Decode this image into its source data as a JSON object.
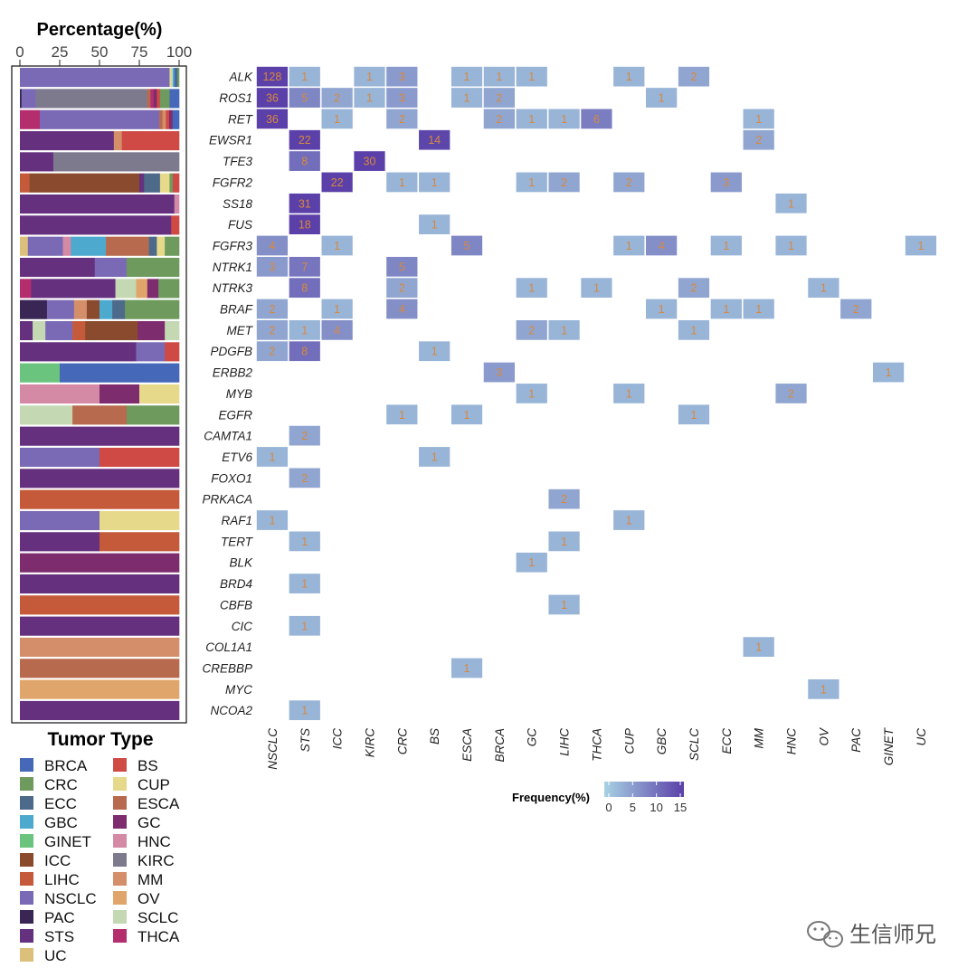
{
  "chart_data": [
    {
      "type": "stacked-bar",
      "orientation": "horizontal",
      "title": "Percentage(%)",
      "xlim": [
        0,
        100
      ],
      "xticks": [
        "0",
        "25",
        "50",
        "75",
        "100"
      ],
      "rows": [
        [
          [
            "NSCLC",
            94
          ],
          [
            "CUP",
            1
          ],
          [
            "SCLC",
            1
          ],
          [
            "GBC",
            1
          ],
          [
            "BRCA",
            1
          ],
          [
            "ECC",
            1
          ],
          [
            "CRC",
            1
          ]
        ],
        [
          [
            "PAC",
            1
          ],
          [
            "NSCLC",
            9
          ],
          [
            "KIRC",
            70
          ],
          [
            "ESCA",
            2
          ],
          [
            "THCA",
            2
          ],
          [
            "GC",
            2
          ],
          [
            "BS",
            2
          ],
          [
            "CRC",
            6
          ],
          [
            "BRCA",
            6
          ]
        ],
        [
          [
            "THCA",
            12
          ],
          [
            "NSCLC",
            72
          ],
          [
            "ESCA",
            2
          ],
          [
            "MM",
            2
          ],
          [
            "BS",
            2
          ],
          [
            "GC",
            2
          ],
          [
            "BRCA",
            4
          ]
        ],
        [
          [
            "STS",
            59
          ],
          [
            "MM",
            5
          ],
          [
            "BS",
            36
          ]
        ],
        [
          [
            "STS",
            21
          ],
          [
            "KIRC",
            79
          ]
        ],
        [
          [
            "LIHC",
            6
          ],
          [
            "ICC",
            69
          ],
          [
            "STS",
            3
          ],
          [
            "ECC",
            10
          ],
          [
            "CUP",
            6
          ],
          [
            "CRC",
            2
          ],
          [
            "BS",
            4
          ]
        ],
        [
          [
            "STS",
            97
          ],
          [
            "HNC",
            3
          ]
        ],
        [
          [
            "STS",
            95
          ],
          [
            "BS",
            5
          ]
        ],
        [
          [
            "UC",
            5
          ],
          [
            "NSCLC",
            22
          ],
          [
            "HNC",
            5
          ],
          [
            "GBC",
            22
          ],
          [
            "ESCA",
            27
          ],
          [
            "ECC",
            5
          ],
          [
            "CUP",
            5
          ],
          [
            "CRC",
            9
          ]
        ],
        [
          [
            "STS",
            47
          ],
          [
            "NSCLC",
            20
          ],
          [
            "CRC",
            33
          ]
        ],
        [
          [
            "THCA",
            7
          ],
          [
            "STS",
            53
          ],
          [
            "SCLC",
            13
          ],
          [
            "OV",
            7
          ],
          [
            "GC",
            7
          ],
          [
            "CRC",
            13
          ]
        ],
        [
          [
            "PAC",
            17
          ],
          [
            "NSCLC",
            17
          ],
          [
            "MM",
            8
          ],
          [
            "ICC",
            8
          ],
          [
            "GBC",
            8
          ],
          [
            "ECC",
            8
          ],
          [
            "CRC",
            34
          ]
        ],
        [
          [
            "STS",
            8
          ],
          [
            "SCLC",
            8
          ],
          [
            "NSCLC",
            17
          ],
          [
            "LIHC",
            8
          ],
          [
            "ICC",
            33
          ],
          [
            "GC",
            17
          ],
          [
            "SCLC",
            9
          ]
        ],
        [
          [
            "STS",
            73
          ],
          [
            "NSCLC",
            18
          ],
          [
            "BS",
            9
          ]
        ],
        [
          [
            "GINET",
            25
          ],
          [
            "BRCA",
            75
          ]
        ],
        [
          [
            "HNC",
            50
          ],
          [
            "GC",
            25
          ],
          [
            "CUP",
            25
          ]
        ],
        [
          [
            "SCLC",
            33
          ],
          [
            "ESCA",
            34
          ],
          [
            "CRC",
            33
          ]
        ],
        [
          [
            "STS",
            100
          ]
        ],
        [
          [
            "NSCLC",
            50
          ],
          [
            "BS",
            50
          ]
        ],
        [
          [
            "STS",
            100
          ]
        ],
        [
          [
            "LIHC",
            100
          ]
        ],
        [
          [
            "NSCLC",
            50
          ],
          [
            "CUP",
            50
          ]
        ],
        [
          [
            "STS",
            50
          ],
          [
            "LIHC",
            50
          ]
        ],
        [
          [
            "GC",
            100
          ]
        ],
        [
          [
            "STS",
            100
          ]
        ],
        [
          [
            "LIHC",
            100
          ]
        ],
        [
          [
            "STS",
            100
          ]
        ],
        [
          [
            "MM",
            100
          ]
        ],
        [
          [
            "ESCA",
            100
          ]
        ],
        [
          [
            "OV",
            100
          ]
        ],
        [
          [
            "STS",
            100
          ]
        ]
      ]
    },
    {
      "type": "heatmap",
      "title": "",
      "genes": [
        "ALK",
        "ROS1",
        "RET",
        "EWSR1",
        "TFE3",
        "FGFR2",
        "SS18",
        "FUS",
        "FGFR3",
        "NTRK1",
        "NTRK3",
        "BRAF",
        "MET",
        "PDGFB",
        "ERBB2",
        "MYB",
        "EGFR",
        "CAMTA1",
        "ETV6",
        "FOXO1",
        "PRKACA",
        "RAF1",
        "TERT",
        "BLK",
        "BRD4",
        "CBFB",
        "CIC",
        "COL1A1",
        "CREBBP",
        "MYC",
        "NCOA2"
      ],
      "tumor_types": [
        "NSCLC",
        "STS",
        "ICC",
        "KIRC",
        "CRC",
        "BS",
        "ESCA",
        "BRCA",
        "GC",
        "LIHC",
        "THCA",
        "CUP",
        "GBC",
        "SCLC",
        "ECC",
        "MM",
        "HNC",
        "OV",
        "PAC",
        "GINET",
        "UC"
      ],
      "cells": [
        [
          "ALK",
          "NSCLC",
          128
        ],
        [
          "ALK",
          "STS",
          1
        ],
        [
          "ALK",
          "KIRC",
          1
        ],
        [
          "ALK",
          "CRC",
          3
        ],
        [
          "ALK",
          "ESCA",
          1
        ],
        [
          "ALK",
          "BRCA",
          1
        ],
        [
          "ALK",
          "GC",
          1
        ],
        [
          "ALK",
          "CUP",
          1
        ],
        [
          "ALK",
          "SCLC",
          2
        ],
        [
          "ROS1",
          "NSCLC",
          36
        ],
        [
          "ROS1",
          "STS",
          5
        ],
        [
          "ROS1",
          "ICC",
          2
        ],
        [
          "ROS1",
          "KIRC",
          1
        ],
        [
          "ROS1",
          "CRC",
          3
        ],
        [
          "ROS1",
          "ESCA",
          1
        ],
        [
          "ROS1",
          "BRCA",
          2
        ],
        [
          "ROS1",
          "GBC",
          1
        ],
        [
          "RET",
          "NSCLC",
          36
        ],
        [
          "RET",
          "ICC",
          1
        ],
        [
          "RET",
          "CRC",
          2
        ],
        [
          "RET",
          "BRCA",
          2
        ],
        [
          "RET",
          "GC",
          1
        ],
        [
          "RET",
          "LIHC",
          1
        ],
        [
          "RET",
          "THCA",
          6
        ],
        [
          "RET",
          "MM",
          1
        ],
        [
          "EWSR1",
          "STS",
          22
        ],
        [
          "EWSR1",
          "BS",
          14
        ],
        [
          "EWSR1",
          "MM",
          2
        ],
        [
          "TFE3",
          "STS",
          8
        ],
        [
          "TFE3",
          "KIRC",
          30
        ],
        [
          "FGFR2",
          "ICC",
          22
        ],
        [
          "FGFR2",
          "CRC",
          1
        ],
        [
          "FGFR2",
          "BS",
          1
        ],
        [
          "FGFR2",
          "GC",
          1
        ],
        [
          "FGFR2",
          "LIHC",
          2
        ],
        [
          "FGFR2",
          "CUP",
          2
        ],
        [
          "FGFR2",
          "ECC",
          3
        ],
        [
          "SS18",
          "STS",
          31
        ],
        [
          "SS18",
          "HNC",
          1
        ],
        [
          "FUS",
          "STS",
          18
        ],
        [
          "FUS",
          "BS",
          1
        ],
        [
          "FGFR3",
          "NSCLC",
          4
        ],
        [
          "FGFR3",
          "ICC",
          1
        ],
        [
          "FGFR3",
          "ESCA",
          5
        ],
        [
          "FGFR3",
          "CUP",
          1
        ],
        [
          "FGFR3",
          "GBC",
          4
        ],
        [
          "FGFR3",
          "ECC",
          1
        ],
        [
          "FGFR3",
          "HNC",
          1
        ],
        [
          "FGFR3",
          "UC",
          1
        ],
        [
          "NTRK1",
          "NSCLC",
          3
        ],
        [
          "NTRK1",
          "STS",
          7
        ],
        [
          "NTRK1",
          "CRC",
          5
        ],
        [
          "NTRK3",
          "STS",
          8
        ],
        [
          "NTRK3",
          "CRC",
          2
        ],
        [
          "NTRK3",
          "GC",
          1
        ],
        [
          "NTRK3",
          "THCA",
          1
        ],
        [
          "NTRK3",
          "SCLC",
          2
        ],
        [
          "NTRK3",
          "OV",
          1
        ],
        [
          "BRAF",
          "NSCLC",
          2
        ],
        [
          "BRAF",
          "ICC",
          1
        ],
        [
          "BRAF",
          "CRC",
          4
        ],
        [
          "BRAF",
          "GBC",
          1
        ],
        [
          "BRAF",
          "ECC",
          1
        ],
        [
          "BRAF",
          "MM",
          1
        ],
        [
          "BRAF",
          "PAC",
          2
        ],
        [
          "MET",
          "NSCLC",
          2
        ],
        [
          "MET",
          "STS",
          1
        ],
        [
          "MET",
          "ICC",
          4
        ],
        [
          "MET",
          "GC",
          2
        ],
        [
          "MET",
          "LIHC",
          1
        ],
        [
          "MET",
          "SCLC",
          1
        ],
        [
          "PDGFB",
          "NSCLC",
          2
        ],
        [
          "PDGFB",
          "STS",
          8
        ],
        [
          "PDGFB",
          "BS",
          1
        ],
        [
          "ERBB2",
          "BRCA",
          3
        ],
        [
          "ERBB2",
          "GINET",
          1
        ],
        [
          "MYB",
          "GC",
          1
        ],
        [
          "MYB",
          "CUP",
          1
        ],
        [
          "MYB",
          "HNC",
          2
        ],
        [
          "EGFR",
          "CRC",
          1
        ],
        [
          "EGFR",
          "ESCA",
          1
        ],
        [
          "EGFR",
          "SCLC",
          1
        ],
        [
          "CAMTA1",
          "STS",
          2
        ],
        [
          "ETV6",
          "NSCLC",
          1
        ],
        [
          "ETV6",
          "BS",
          1
        ],
        [
          "FOXO1",
          "STS",
          2
        ],
        [
          "PRKACA",
          "LIHC",
          2
        ],
        [
          "RAF1",
          "NSCLC",
          1
        ],
        [
          "RAF1",
          "CUP",
          1
        ],
        [
          "TERT",
          "STS",
          1
        ],
        [
          "TERT",
          "LIHC",
          1
        ],
        [
          "BLK",
          "GC",
          1
        ],
        [
          "BRD4",
          "STS",
          1
        ],
        [
          "CBFB",
          "LIHC",
          1
        ],
        [
          "CIC",
          "STS",
          1
        ],
        [
          "COL1A1",
          "MM",
          1
        ],
        [
          "CREBBP",
          "ESCA",
          1
        ],
        [
          "MYC",
          "OV",
          1
        ],
        [
          "NCOA2",
          "STS",
          1
        ]
      ],
      "colorbar": {
        "title": "Frequency(%)",
        "range": [
          0,
          15
        ],
        "ticks": [
          "0",
          "5",
          "10",
          "15"
        ],
        "low_color": "#a7d1e3",
        "high_color": "#5a40a8"
      }
    }
  ],
  "legend": {
    "title": "Tumor Type",
    "items": [
      {
        "label": "BRCA",
        "color": "#4568b8"
      },
      {
        "label": "BS",
        "color": "#cf4a45"
      },
      {
        "label": "CRC",
        "color": "#6e9a5e"
      },
      {
        "label": "CUP",
        "color": "#e6d98a"
      },
      {
        "label": "ECC",
        "color": "#4e6a8a"
      },
      {
        "label": "ESCA",
        "color": "#b86a4e"
      },
      {
        "label": "GBC",
        "color": "#4ea9cf"
      },
      {
        "label": "GC",
        "color": "#7d2c6e"
      },
      {
        "label": "GINET",
        "color": "#6ac47e"
      },
      {
        "label": "HNC",
        "color": "#d48aa5"
      },
      {
        "label": "ICC",
        "color": "#8a4a2e"
      },
      {
        "label": "KIRC",
        "color": "#7d7a8e"
      },
      {
        "label": "LIHC",
        "color": "#c45a3a"
      },
      {
        "label": "MM",
        "color": "#d48f6a"
      },
      {
        "label": "NSCLC",
        "color": "#7a6ab5"
      },
      {
        "label": "OV",
        "color": "#e0a56a"
      },
      {
        "label": "PAC",
        "color": "#3a2654"
      },
      {
        "label": "SCLC",
        "color": "#c4d8b4"
      },
      {
        "label": "STS",
        "color": "#65317f"
      },
      {
        "label": "THCA",
        "color": "#b42e6e"
      },
      {
        "label": "UC",
        "color": "#dcbf7a"
      }
    ]
  },
  "watermark": {
    "text": "生信师兄",
    "icon": "wechat-icon"
  }
}
